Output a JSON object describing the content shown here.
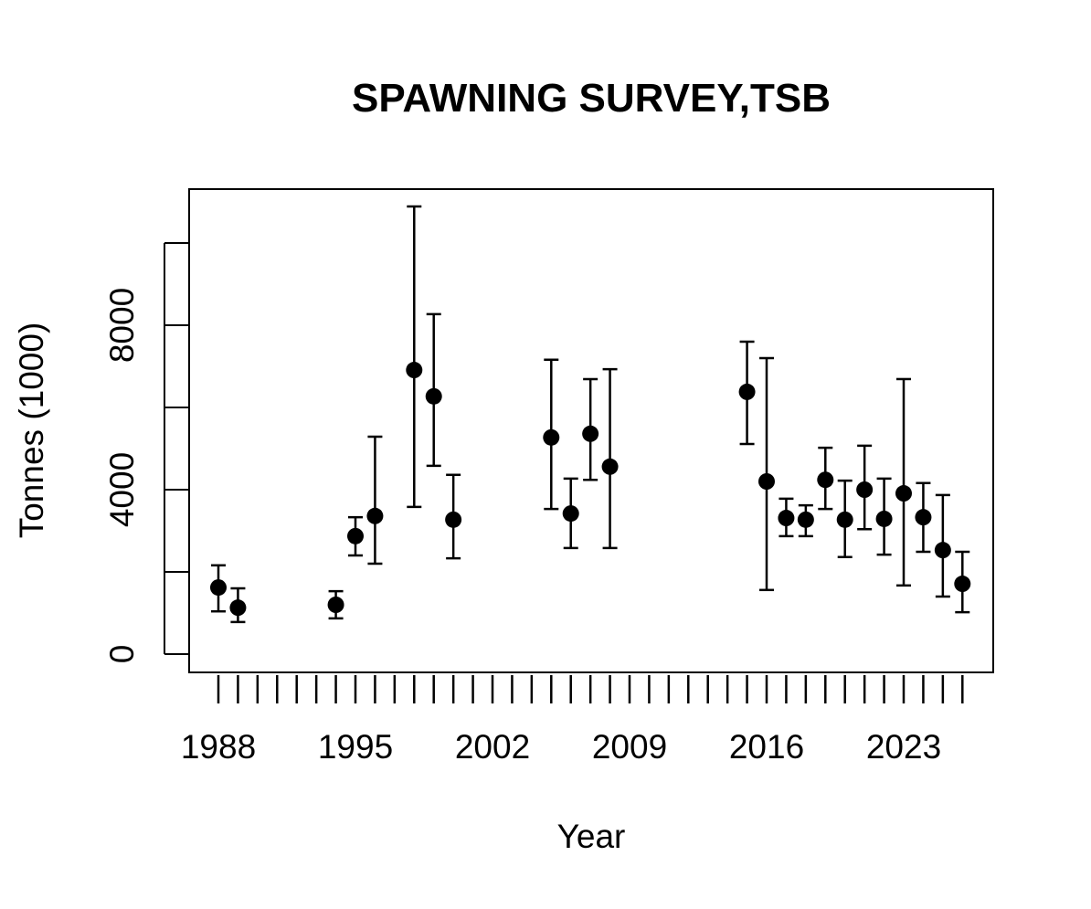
{
  "chart_data": {
    "type": "scatter",
    "title": "SPAWNING SURVEY,TSB",
    "xlabel": "Year",
    "ylabel": "Tonnes (1000)",
    "xlim": [
      1986.5,
      2027.5
    ],
    "ylim": [
      -450,
      11300
    ],
    "xticks_minor": [
      1988,
      1989,
      1990,
      1991,
      1992,
      1993,
      1994,
      1995,
      1996,
      1997,
      1998,
      1999,
      2000,
      2001,
      2002,
      2003,
      2004,
      2005,
      2006,
      2007,
      2008,
      2009,
      2010,
      2011,
      2012,
      2013,
      2014,
      2015,
      2016,
      2017,
      2018,
      2019,
      2020,
      2021,
      2022,
      2023,
      2024,
      2025,
      2026
    ],
    "xtick_labels": [
      "1988",
      "1995",
      "2002",
      "2009",
      "2016",
      "2023"
    ],
    "yticks": [
      0,
      2000,
      4000,
      6000,
      8000,
      10000
    ],
    "ytick_labels": [
      "0",
      "4000",
      "8000"
    ],
    "grid": false,
    "series": [
      {
        "name": "TSB",
        "x": [
          1988,
          1989,
          1994,
          1995,
          1996,
          1998,
          1999,
          2000,
          2005,
          2006,
          2007,
          2008,
          2015,
          2016,
          2017,
          2018,
          2019,
          2020,
          2021,
          2022,
          2023,
          2024,
          2025,
          2026
        ],
        "y": [
          1620,
          1130,
          1200,
          2870,
          3360,
          6910,
          6270,
          3270,
          5270,
          3420,
          5360,
          4560,
          6380,
          4200,
          3310,
          3270,
          4240,
          3270,
          4000,
          3290,
          3910,
          3330,
          2530,
          1710
        ],
        "lower": [
          1040,
          780,
          870,
          2400,
          2200,
          3580,
          4580,
          2330,
          3530,
          2580,
          4240,
          2580,
          5110,
          1560,
          2870,
          2870,
          3530,
          2360,
          3040,
          2420,
          1670,
          2490,
          1400,
          1020
        ],
        "upper": [
          2160,
          1600,
          1530,
          3330,
          5290,
          10890,
          8270,
          4360,
          7160,
          4270,
          6690,
          6930,
          7600,
          7200,
          3780,
          3620,
          5020,
          4220,
          5070,
          4270,
          6690,
          4160,
          3870,
          2490
        ]
      }
    ]
  }
}
